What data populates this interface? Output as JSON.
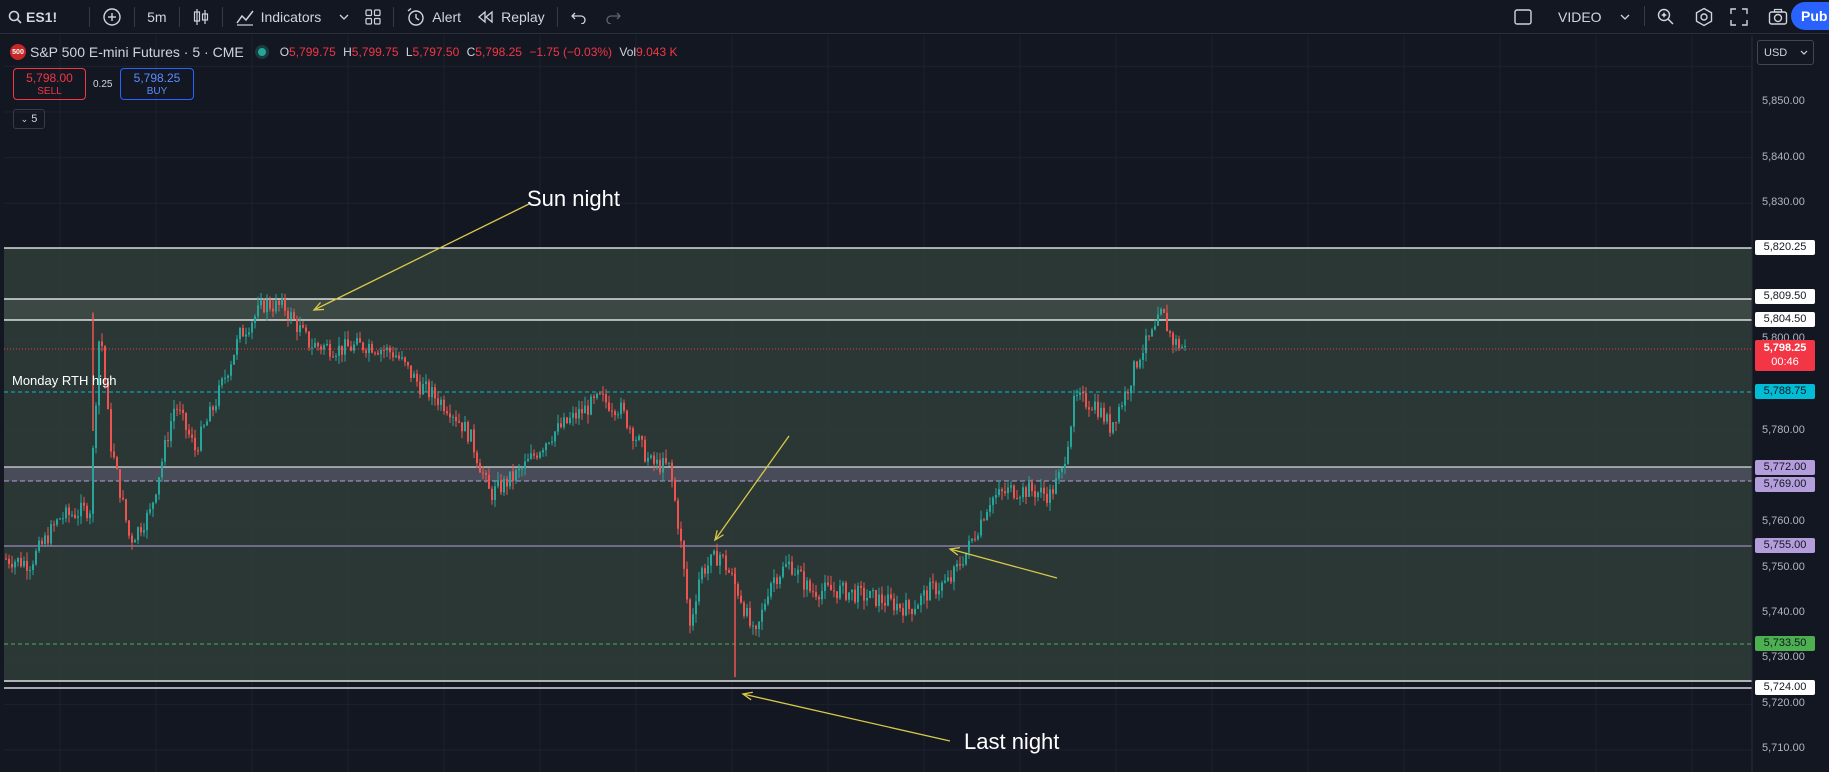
{
  "toolbar": {
    "symbol": "ES1!",
    "interval": "5m",
    "indicators_label": "Indicators",
    "alert_label": "Alert",
    "replay_label": "Replay",
    "video_label": "VIDEO",
    "publish_label": "Pub"
  },
  "legend": {
    "badge": "500",
    "title": "S&P 500 E-mini Futures · 5 · CME",
    "open_key": "O",
    "open": "5,799.75",
    "high_key": "H",
    "high": "5,799.75",
    "low_key": "L",
    "low": "5,797.50",
    "close_key": "C",
    "close": "5,798.25",
    "change": "−1.75 (−0.03%)",
    "vol_key": "Vol",
    "vol": "9.043 K"
  },
  "trade": {
    "sell_price": "5,798.00",
    "sell_label": "SELL",
    "spread": "0.25",
    "buy_price": "5,798.25",
    "buy_label": "BUY",
    "collapse_count": "5"
  },
  "currency": "USD",
  "annotations": {
    "sun_night": "Sun night",
    "last_night": "Last night",
    "monday_rth": "Monday RTH high"
  },
  "price_axis": [
    "5,850.00",
    "5,840.00",
    "5,830.00",
    "5,800.00",
    "5,780.00",
    "5,760.00",
    "5,750.00",
    "5,740.00",
    "5,730.00",
    "5,720.00",
    "5,710.00"
  ],
  "price_labels": {
    "l1": "5,820.25",
    "l2": "5,809.50",
    "l3": "5,804.50",
    "last_price": "5,798.25",
    "countdown": "00:46",
    "l4": "5,788.75",
    "l5": "5,772.00",
    "l6": "5,769.00",
    "l7": "5,755.00",
    "l8": "5,733.50",
    "l9": "5,724.00"
  },
  "colors": {
    "up": "#26a69a",
    "down": "#ef5350",
    "zone": "#2f3d38",
    "cyan": "#00bcd4",
    "lavender": "#b39ddb",
    "green_label": "#4caf50",
    "red_label": "#f23645",
    "arrow": "#d8c84a"
  }
}
